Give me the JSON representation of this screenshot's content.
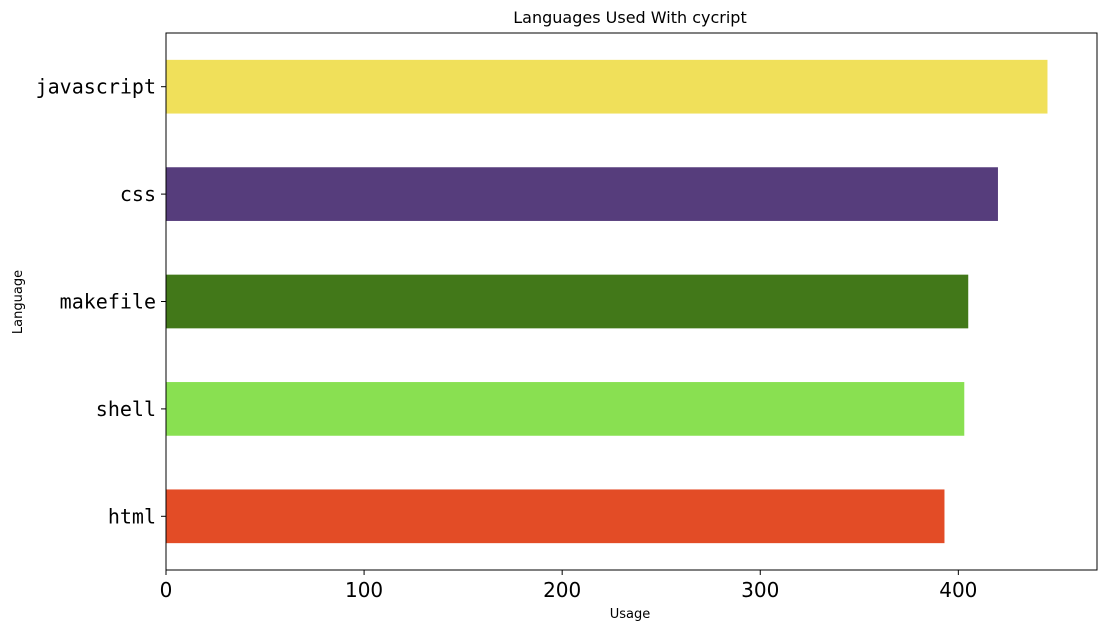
{
  "chart_data": {
    "type": "bar",
    "orientation": "horizontal",
    "title": "Languages Used With cycript",
    "xlabel": "Usage",
    "ylabel": "Language",
    "categories": [
      "javascript",
      "css",
      "makefile",
      "shell",
      "html"
    ],
    "values": [
      445,
      420,
      405,
      403,
      393
    ],
    "colors": [
      "#f0e05a",
      "#563d7c",
      "#427819",
      "#89e051",
      "#e34c26"
    ],
    "xlim": [
      0,
      470
    ],
    "xticks": [
      0,
      100,
      200,
      300,
      400
    ],
    "grid": false,
    "legend": "none"
  }
}
